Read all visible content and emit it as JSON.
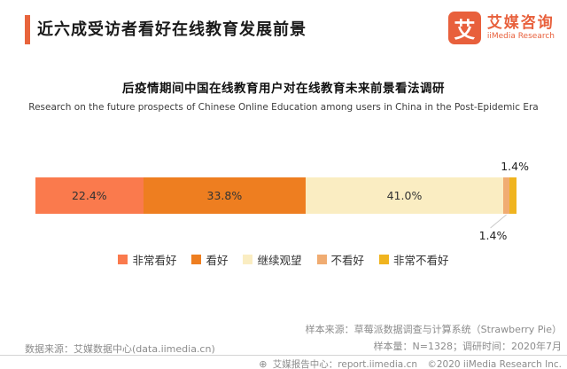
{
  "header": {
    "title": "近六成受访者看好在线教育发展前景",
    "logo": {
      "icon_char": "艾",
      "name_cn": "艾媒咨询",
      "name_en": "iiMedia Research",
      "brand_color": "#E8603C"
    }
  },
  "chart_data": {
    "type": "bar",
    "orientation": "horizontal_stacked",
    "title": "后疫情期间中国在线教育用户对在线教育未来前景看法调研",
    "subtitle": "Research on the future prospects of Chinese Online Education among users in China in the Post-Epidemic Era",
    "categories": [
      "非常看好",
      "看好",
      "继续观望",
      "不看好",
      "非常不看好"
    ],
    "values": [
      22.4,
      33.8,
      41.0,
      1.4,
      1.4
    ],
    "colors": [
      "#FA7A4D",
      "#EE7E20",
      "#FAEDC2",
      "#F0AC72",
      "#F0B41F"
    ],
    "value_unit": "%",
    "xlim": [
      0,
      100
    ],
    "legend_position": "bottom",
    "grid": false
  },
  "footer": {
    "data_source": "数据来源：艾媒数据中心(data.iimedia.cn)",
    "sample_source": "样本来源：草莓派数据调查与计算系统（Strawberry Pie）",
    "sample_info": "样本量：N=1328；调研时间：2020年7月",
    "globe_icon": "⊕",
    "report_center": "艾媒报告中心：report.iimedia.cn",
    "copyright": "©2020  iiMedia Research Inc."
  }
}
